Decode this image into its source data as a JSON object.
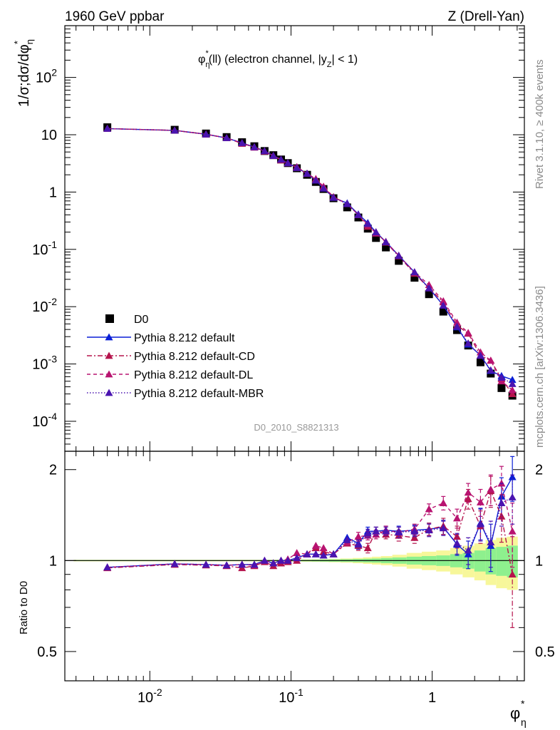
{
  "header": {
    "left": "1960 GeV ppbar",
    "right": "Z (Drell-Yan)"
  },
  "side_labels": {
    "rivet": "Rivet 3.1.10, ≥ 400k events",
    "mcplots": "mcplots.cern.ch [arXiv:1306.3436]"
  },
  "chart_data": {
    "type": "scatter",
    "title": "φ*η(ll) (electron channel, |yZ| < 1)",
    "analysis_tag": "D0_2010_S8821313",
    "ylabel": "1/σ;dσ/dφ*η",
    "ylabel_ratio": "Ratio to D0",
    "xlabel": "φ*η",
    "xscale": "log",
    "yscale": "log",
    "xlim": [
      0.0025,
      4.5
    ],
    "ylim": [
      3e-05,
      800
    ],
    "ylim_ratio": [
      0.4,
      2.3
    ],
    "x_ticks": [
      {
        "v": 0.01,
        "label": "10^{-2}"
      },
      {
        "v": 0.1,
        "label": "10^{-1}"
      },
      {
        "v": 1,
        "label": "1"
      }
    ],
    "y_ticks": [
      {
        "v": 0.0001,
        "label": "10^{-4}"
      },
      {
        "v": 0.001,
        "label": "10^{-3}"
      },
      {
        "v": 0.01,
        "label": "10^{-2}"
      },
      {
        "v": 0.1,
        "label": "10^{-1}"
      },
      {
        "v": 1,
        "label": "1"
      },
      {
        "v": 10,
        "label": "10"
      },
      {
        "v": 100,
        "label": "10^{2}"
      }
    ],
    "ratio_ticks": [
      {
        "v": 0.5,
        "label": "0.5"
      },
      {
        "v": 1,
        "label": "1"
      },
      {
        "v": 2,
        "label": "2"
      }
    ],
    "legend_position": "bottom-left",
    "x": [
      0.005,
      0.015,
      0.025,
      0.035,
      0.045,
      0.055,
      0.065,
      0.075,
      0.085,
      0.095,
      0.11,
      0.13,
      0.15,
      0.17,
      0.2,
      0.25,
      0.3,
      0.35,
      0.4,
      0.47,
      0.58,
      0.75,
      0.95,
      1.2,
      1.5,
      1.8,
      2.2,
      2.6,
      3.1,
      3.7
    ],
    "data": {
      "name": "D0",
      "color": "#000000",
      "values": [
        13.5,
        12.2,
        10.5,
        9.1,
        7.4,
        6.3,
        5.2,
        4.4,
        3.7,
        3.2,
        2.6,
        2.0,
        1.5,
        1.13,
        0.78,
        0.54,
        0.36,
        0.23,
        0.158,
        0.108,
        0.063,
        0.032,
        0.0165,
        0.0082,
        0.0039,
        0.0021,
        0.00107,
        0.00068,
        0.00038,
        0.00028
      ],
      "band_inner_rel": [
        0.004,
        0.004,
        0.004,
        0.004,
        0.004,
        0.004,
        0.004,
        0.004,
        0.005,
        0.005,
        0.006,
        0.006,
        0.007,
        0.008,
        0.009,
        0.01,
        0.012,
        0.014,
        0.016,
        0.02,
        0.024,
        0.03,
        0.035,
        0.04,
        0.05,
        0.06,
        0.08,
        0.1,
        0.11,
        0.12
      ],
      "band_outer_rel": [
        0.006,
        0.006,
        0.006,
        0.006,
        0.006,
        0.006,
        0.006,
        0.006,
        0.007,
        0.007,
        0.008,
        0.009,
        0.01,
        0.011,
        0.013,
        0.016,
        0.02,
        0.025,
        0.03,
        0.035,
        0.045,
        0.06,
        0.07,
        0.08,
        0.1,
        0.12,
        0.14,
        0.17,
        0.19,
        0.2
      ]
    },
    "series": [
      {
        "name": "Pythia 8.212 default",
        "color": "#0a1fd6",
        "dash": "",
        "values": [
          12.8,
          11.9,
          10.2,
          8.8,
          7.2,
          6.1,
          5.2,
          4.3,
          3.7,
          3.2,
          2.65,
          2.1,
          1.6,
          1.16,
          0.8,
          0.64,
          0.41,
          0.29,
          0.2,
          0.135,
          0.078,
          0.04,
          0.021,
          0.0105,
          0.0044,
          0.0022,
          0.00142,
          0.00076,
          0.00062,
          0.00053
        ],
        "ratio": [
          0.95,
          0.975,
          0.97,
          0.965,
          0.97,
          0.97,
          1.0,
          0.98,
          1.0,
          1.0,
          1.02,
          1.05,
          1.05,
          1.04,
          1.05,
          1.19,
          1.14,
          1.25,
          1.25,
          1.26,
          1.25,
          1.26,
          1.27,
          1.29,
          1.13,
          1.05,
          1.33,
          1.12,
          1.63,
          1.89
        ],
        "ratio_err": [
          0.01,
          0.01,
          0.01,
          0.01,
          0.01,
          0.01,
          0.01,
          0.01,
          0.01,
          0.015,
          0.015,
          0.015,
          0.015,
          0.02,
          0.02,
          0.03,
          0.04,
          0.04,
          0.04,
          0.04,
          0.05,
          0.05,
          0.06,
          0.07,
          0.09,
          0.11,
          0.16,
          0.2,
          0.25,
          0.32
        ]
      },
      {
        "name": "Pythia 8.212 default-CD",
        "color": "#b5134c",
        "dash": "7,3,2,3",
        "values": [
          12.8,
          11.9,
          10.2,
          8.8,
          7.0,
          6.1,
          5.1,
          4.3,
          3.6,
          3.2,
          2.65,
          2.1,
          1.65,
          1.2,
          0.82,
          0.62,
          0.4,
          0.25,
          0.2,
          0.132,
          0.076,
          0.038,
          0.021,
          0.012,
          0.0047,
          0.0034,
          0.0014,
          0.00115,
          0.00055,
          0.0003
        ],
        "ratio": [
          0.945,
          0.97,
          0.965,
          0.96,
          0.945,
          0.96,
          0.99,
          0.96,
          0.98,
          0.99,
          1.0,
          1.05,
          1.1,
          1.07,
          1.05,
          1.14,
          1.12,
          1.1,
          1.25,
          1.22,
          1.21,
          1.19,
          1.27,
          1.3,
          1.2,
          1.6,
          1.3,
          1.7,
          1.4,
          0.9
        ],
        "ratio_err": [
          0.01,
          0.01,
          0.01,
          0.01,
          0.01,
          0.01,
          0.01,
          0.01,
          0.01,
          0.015,
          0.015,
          0.015,
          0.02,
          0.02,
          0.02,
          0.03,
          0.04,
          0.04,
          0.04,
          0.04,
          0.05,
          0.05,
          0.06,
          0.08,
          0.1,
          0.12,
          0.16,
          0.2,
          0.25,
          0.3
        ]
      },
      {
        "name": "Pythia 8.212 default-DL",
        "color": "#b81370",
        "dash": "5,4",
        "values": [
          12.8,
          11.9,
          10.2,
          8.8,
          7.2,
          6.0,
          5.2,
          4.3,
          3.7,
          3.2,
          2.75,
          2.1,
          1.7,
          1.25,
          0.82,
          0.62,
          0.4,
          0.27,
          0.19,
          0.136,
          0.078,
          0.04,
          0.024,
          0.0125,
          0.0053,
          0.0035,
          0.0016,
          0.00115,
          0.0005,
          0.00035
        ],
        "ratio": [
          0.95,
          0.975,
          0.97,
          0.965,
          0.97,
          0.965,
          1.0,
          0.98,
          1.0,
          1.01,
          1.06,
          1.05,
          1.12,
          1.1,
          1.05,
          1.15,
          1.2,
          1.21,
          1.22,
          1.26,
          1.24,
          1.27,
          1.48,
          1.55,
          1.38,
          1.68,
          1.56,
          1.72,
          1.8,
          1.25
        ],
        "ratio_err": [
          0.01,
          0.01,
          0.01,
          0.01,
          0.01,
          0.01,
          0.01,
          0.01,
          0.01,
          0.015,
          0.015,
          0.015,
          0.02,
          0.02,
          0.02,
          0.03,
          0.04,
          0.04,
          0.04,
          0.04,
          0.05,
          0.05,
          0.06,
          0.08,
          0.1,
          0.12,
          0.16,
          0.2,
          0.25,
          0.3
        ]
      },
      {
        "name": "Pythia 8.212 default-MBR",
        "color": "#4a14b0",
        "dash": "1.5,2.5",
        "values": [
          12.8,
          11.9,
          10.2,
          8.8,
          7.2,
          6.1,
          5.2,
          4.3,
          3.7,
          3.2,
          2.65,
          2.1,
          1.6,
          1.16,
          0.8,
          0.62,
          0.4,
          0.28,
          0.2,
          0.134,
          0.077,
          0.04,
          0.021,
          0.0105,
          0.0045,
          0.0023,
          0.0014,
          0.00078,
          0.00058,
          0.00045
        ],
        "ratio": [
          0.95,
          0.975,
          0.97,
          0.965,
          0.97,
          0.97,
          1.0,
          0.98,
          1.0,
          1.0,
          1.02,
          1.05,
          1.05,
          1.04,
          1.05,
          1.17,
          1.13,
          1.23,
          1.25,
          1.25,
          1.24,
          1.25,
          1.26,
          1.28,
          1.14,
          1.08,
          1.32,
          1.15,
          1.55,
          1.62
        ],
        "ratio_err": [
          0.01,
          0.01,
          0.01,
          0.01,
          0.01,
          0.01,
          0.01,
          0.01,
          0.01,
          0.015,
          0.015,
          0.015,
          0.015,
          0.02,
          0.02,
          0.03,
          0.04,
          0.04,
          0.04,
          0.04,
          0.05,
          0.05,
          0.06,
          0.07,
          0.09,
          0.11,
          0.16,
          0.2,
          0.25,
          0.3
        ]
      }
    ]
  }
}
